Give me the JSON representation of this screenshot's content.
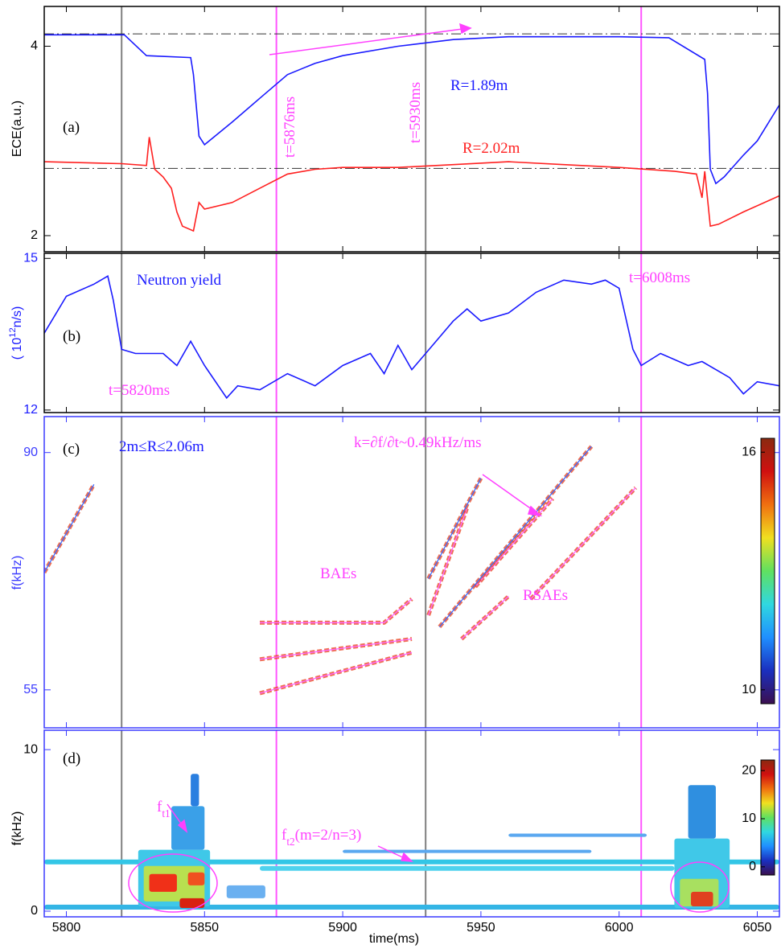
{
  "x_axis": {
    "xlim": [
      5792,
      6058
    ],
    "xticks": [
      5800,
      5850,
      5900,
      5950,
      6000,
      6050
    ],
    "label": "time(ms)"
  },
  "time_markers": [
    {
      "x": 5820,
      "color": "#808080"
    },
    {
      "x": 5876,
      "color": "#ff55ff"
    },
    {
      "x": 5930,
      "color": "#808080"
    },
    {
      "x": 6008,
      "color": "#ff55ff"
    }
  ],
  "chart_data": [
    {
      "type": "line",
      "ylabel": {
        "parts": [
          {
            "text": "ECE(a.u.)"
          }
        ]
      },
      "axis_color": "#000000",
      "ylim": [
        1.83,
        4.42
      ],
      "yticks": [
        2,
        4
      ],
      "reference_lines": [
        4.13,
        2.71
      ],
      "series": [
        {
          "name": "R=1.89m",
          "color": "#1a1aff",
          "x": [
            5792,
            5821,
            5829,
            5845,
            5846,
            5848,
            5850,
            5860,
            5870,
            5880,
            5890,
            5900,
            5920,
            5940,
            5960,
            5980,
            6000,
            6018,
            6031,
            6032,
            6033,
            6035,
            6038,
            6045,
            6050,
            6058
          ],
          "values": [
            4.12,
            4.12,
            3.9,
            3.88,
            3.7,
            3.05,
            2.96,
            3.2,
            3.45,
            3.7,
            3.82,
            3.9,
            4.0,
            4.07,
            4.1,
            4.1,
            4.1,
            4.09,
            3.86,
            3.5,
            2.7,
            2.55,
            2.62,
            2.85,
            3.0,
            3.38
          ]
        },
        {
          "name": "R=2.02m",
          "color": "#ff2020",
          "x": [
            5792,
            5820,
            5829,
            5830,
            5832,
            5835,
            5838,
            5840,
            5842,
            5846,
            5848,
            5850,
            5860,
            5870,
            5880,
            5890,
            5900,
            5920,
            5940,
            5960,
            5980,
            6000,
            6020,
            6028,
            6030,
            6031,
            6033,
            6036,
            6045,
            6058
          ],
          "values": [
            2.78,
            2.76,
            2.74,
            3.04,
            2.7,
            2.62,
            2.5,
            2.25,
            2.1,
            2.05,
            2.35,
            2.28,
            2.35,
            2.5,
            2.65,
            2.7,
            2.72,
            2.72,
            2.75,
            2.78,
            2.75,
            2.72,
            2.68,
            2.65,
            2.4,
            2.68,
            2.1,
            2.12,
            2.25,
            2.42
          ]
        }
      ],
      "annotations": [
        {
          "parts": [
            {
              "text": "(a)"
            }
          ],
          "color": "#000000"
        },
        {
          "parts": [
            {
              "text": "R=1.89m"
            }
          ],
          "color": "#1a1aff"
        },
        {
          "parts": [
            {
              "text": "R=2.02m"
            }
          ],
          "color": "#ff2020"
        },
        {
          "parts": [
            {
              "text": "t=5876ms"
            }
          ],
          "color": "#ff40ff"
        },
        {
          "parts": [
            {
              "text": "t=5930ms"
            }
          ],
          "color": "#ff40ff"
        }
      ]
    },
    {
      "type": "line",
      "ylabel": {
        "parts": [
          {
            "text": "( 10"
          },
          {
            "text": "12",
            "sup": true
          },
          {
            "text": "n/s)"
          }
        ]
      },
      "axis_color": "#000000",
      "label_color": "#1a1aff",
      "ylim": [
        11.95,
        15.1
      ],
      "yticks": [
        12,
        15
      ],
      "series": [
        {
          "name": "Neutron yield",
          "color": "#1a1aff",
          "x": [
            5792,
            5800,
            5810,
            5815,
            5817,
            5820,
            5825,
            5835,
            5840,
            5845,
            5850,
            5858,
            5862,
            5870,
            5880,
            5890,
            5900,
            5910,
            5915,
            5920,
            5925,
            5930,
            5940,
            5945,
            5950,
            5960,
            5970,
            5980,
            5990,
            5995,
            6000,
            6005,
            6008,
            6015,
            6025,
            6030,
            6040,
            6045,
            6050,
            6058
          ],
          "values": [
            13.52,
            14.25,
            14.49,
            14.65,
            14.17,
            13.2,
            13.12,
            13.12,
            12.88,
            13.36,
            12.88,
            12.24,
            12.48,
            12.4,
            12.72,
            12.48,
            12.88,
            13.12,
            12.72,
            13.28,
            12.8,
            13.12,
            13.76,
            14.0,
            13.76,
            13.92,
            14.33,
            14.57,
            14.49,
            14.57,
            14.41,
            13.2,
            12.88,
            13.12,
            12.88,
            12.96,
            12.64,
            12.32,
            12.56,
            12.48
          ]
        }
      ],
      "annotations": [
        {
          "parts": [
            {
              "text": "(b)"
            }
          ],
          "color": "#000000"
        },
        {
          "parts": [
            {
              "text": "Neutron yield"
            }
          ],
          "color": "#1a1aff"
        },
        {
          "parts": [
            {
              "text": "t=5820ms"
            }
          ],
          "color": "#ff40ff"
        },
        {
          "parts": [
            {
              "text": "t=6008ms"
            }
          ],
          "color": "#ff40ff"
        }
      ]
    },
    {
      "type": "spectrum-lines",
      "ylabel": {
        "parts": [
          {
            "text": "f(kHz)"
          }
        ]
      },
      "axis_color": "#3a3aff",
      "label_color": "#3a3aff",
      "ylim": [
        49.4,
        95.3
      ],
      "yticks": [
        55,
        90
      ],
      "highlight": "#e8401a",
      "series": [
        {
          "color": "#3a6aff",
          "x": [
            5792,
            5810
          ],
          "values": [
            72.3,
            85.3
          ]
        },
        {
          "color": "#ff66ff",
          "x": [
            5870,
            5915,
            5925
          ],
          "values": [
            64.9,
            64.9,
            68.4
          ]
        },
        {
          "color": "#ff66ff",
          "x": [
            5870,
            5925
          ],
          "values": [
            59.5,
            62.5
          ]
        },
        {
          "color": "#ff66ff",
          "x": [
            5870,
            5925
          ],
          "values": [
            54.5,
            60.5
          ]
        },
        {
          "color": "#ff66ff",
          "x": [
            5931,
            5945
          ],
          "values": [
            66.0,
            81.8
          ]
        },
        {
          "color": "#3a6aff",
          "x": [
            5931,
            5950
          ],
          "values": [
            71.4,
            86.2
          ]
        },
        {
          "color": "#ff66ff",
          "x": [
            5948,
            5976
          ],
          "values": [
            70.2,
            83.2
          ]
        },
        {
          "color": "#3a6aff",
          "x": [
            5935,
            5990
          ],
          "values": [
            64.3,
            90.9
          ]
        },
        {
          "color": "#ff66ff",
          "x": [
            5943,
            5960
          ],
          "values": [
            62.5,
            68.8
          ]
        },
        {
          "color": "#ff66ff",
          "x": [
            5968,
            6006
          ],
          "values": [
            68.4,
            84.8
          ]
        }
      ],
      "colorbar": {
        "clim": [
          9.65,
          16.35
        ],
        "ticks": [
          10,
          16
        ],
        "colormap": [
          "#3b0f4f",
          "#1a2fbf",
          "#1f8fff",
          "#30d8e0",
          "#60e060",
          "#f0e020",
          "#f07010",
          "#d01010",
          "#8a2a10"
        ]
      },
      "annotations": [
        {
          "parts": [
            {
              "text": "(c)"
            }
          ],
          "color": "#000000"
        },
        {
          "parts": [
            {
              "text": "2m≤R≤2.06m"
            }
          ],
          "color": "#1a1aff"
        },
        {
          "parts": [
            {
              "text": "k=∂f/∂t~0.49kHz/ms"
            }
          ],
          "color": "#ff40ff"
        },
        {
          "parts": [
            {
              "text": "BAEs"
            }
          ],
          "color": "#ff40ff"
        },
        {
          "parts": [
            {
              "text": "RSAEs"
            }
          ],
          "color": "#ff40ff"
        }
      ]
    },
    {
      "type": "spectrogram",
      "ylabel": {
        "parts": [
          {
            "text": "f(kHz)"
          }
        ]
      },
      "axis_color": "#3a3aff",
      "label_color": "#000000",
      "ylim": [
        -0.35,
        11.2
      ],
      "yticks": [
        0,
        10
      ],
      "patches": [
        {
          "x": [
            5792,
            6058
          ],
          "f": [
            2.9,
            3.2
          ],
          "color": "#33c6e6"
        },
        {
          "x": [
            5870,
            6020
          ],
          "f": [
            2.5,
            2.8
          ],
          "color": "#4fd2ee"
        },
        {
          "x": [
            5792,
            6058
          ],
          "f": [
            0.1,
            0.4
          ],
          "color": "#33b5e5"
        },
        {
          "x": [
            5900,
            5990
          ],
          "f": [
            3.6,
            3.8
          ],
          "color": "#5aa8f0"
        },
        {
          "x": [
            5960,
            6010
          ],
          "f": [
            4.6,
            4.8
          ],
          "color": "#5aa8f0"
        },
        {
          "x": [
            5858,
            5872
          ],
          "f": [
            0.8,
            1.6
          ],
          "color": "#6ab0f0"
        },
        {
          "x": [
            5826,
            5852
          ],
          "f": [
            0.3,
            3.8
          ],
          "color": "#3fc8e8"
        },
        {
          "x": [
            5838,
            5850
          ],
          "f": [
            3.8,
            6.5
          ],
          "color": "#3aa0e8"
        },
        {
          "x": [
            5845,
            5848
          ],
          "f": [
            6.5,
            8.5
          ],
          "color": "#2a7fe0"
        },
        {
          "x": [
            5828,
            5850
          ],
          "f": [
            0.6,
            2.8
          ],
          "color": "#b8e050"
        },
        {
          "x": [
            5830,
            5840
          ],
          "f": [
            1.2,
            2.3
          ],
          "color": "#f03018"
        },
        {
          "x": [
            5841,
            5850
          ],
          "f": [
            0.2,
            0.8
          ],
          "color": "#d82010"
        },
        {
          "x": [
            5844,
            5850
          ],
          "f": [
            1.6,
            2.4
          ],
          "color": "#f05020"
        },
        {
          "x": [
            6020,
            6040
          ],
          "f": [
            0.2,
            4.5
          ],
          "color": "#40c8e8"
        },
        {
          "x": [
            6025,
            6035
          ],
          "f": [
            4.5,
            7.8
          ],
          "color": "#2f8fe0"
        },
        {
          "x": [
            6022,
            6036
          ],
          "f": [
            0.3,
            2.0
          ],
          "color": "#a8e060"
        },
        {
          "x": [
            6026,
            6034
          ],
          "f": [
            0.3,
            1.2
          ],
          "color": "#e04020"
        }
      ],
      "colorbar": {
        "clim": [
          -1.7,
          22.2
        ],
        "ticks": [
          0,
          10,
          20
        ],
        "colormap": [
          "#3b0f4f",
          "#1a2fbf",
          "#1f8fff",
          "#30d8e0",
          "#60e060",
          "#f0e020",
          "#f07010",
          "#d01010",
          "#8a2a10"
        ]
      },
      "annotations": [
        {
          "parts": [
            {
              "text": "(d)"
            }
          ],
          "color": "#000000"
        },
        {
          "parts": [
            {
              "text": "f"
            },
            {
              "text": "t1",
              "sub": true
            }
          ],
          "color": "#ff40ff"
        },
        {
          "parts": [
            {
              "text": "f"
            },
            {
              "text": "t2",
              "sub": true
            },
            {
              "text": "(m=2/n=3)"
            }
          ],
          "color": "#ff40ff"
        }
      ]
    }
  ]
}
